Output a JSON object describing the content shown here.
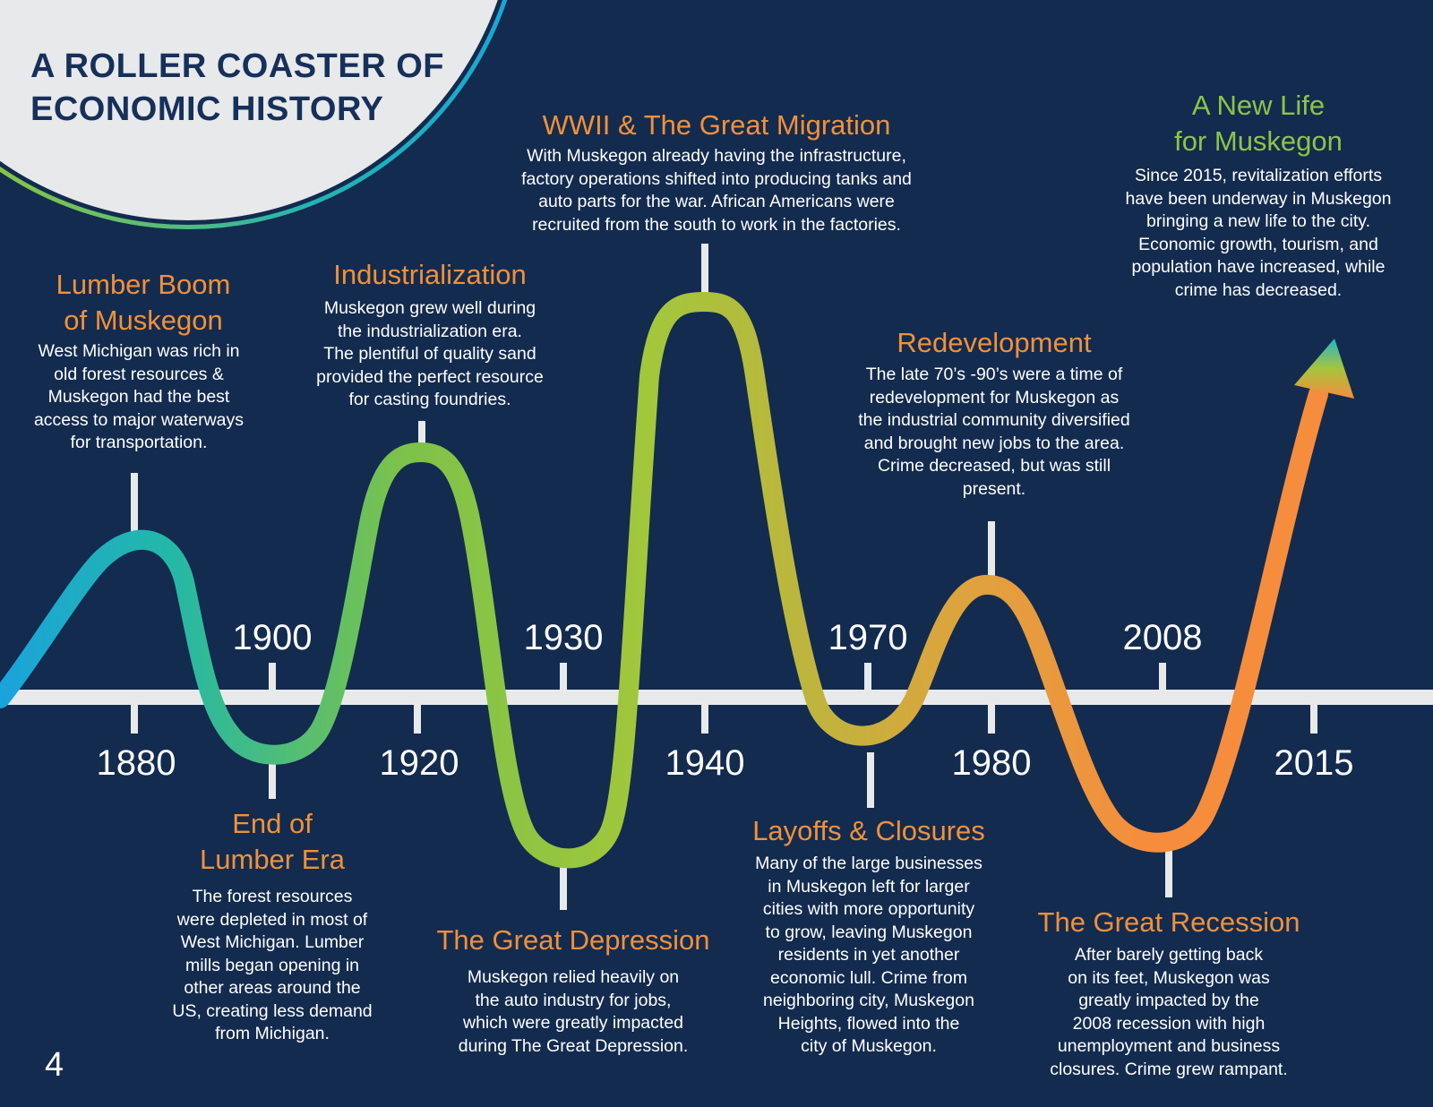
{
  "title": [
    "A ROLLER COASTER OF",
    "ECONOMIC HISTORY"
  ],
  "page_number": "4",
  "years_above": [
    "1900",
    "1930",
    "1970",
    "2008"
  ],
  "years_below": [
    "1880",
    "1920",
    "1940",
    "1980",
    "2015"
  ],
  "events": {
    "lumber_boom": {
      "heading": [
        "Lumber Boom",
        "of Muskegon"
      ],
      "body": [
        "West Michigan was rich in",
        "old forest resources &",
        "Muskegon had the best",
        "access to major waterways",
        "for transportation."
      ]
    },
    "end_lumber": {
      "heading": [
        "End of",
        "Lumber Era"
      ],
      "body": [
        "The forest resources",
        "were depleted in most of",
        "West Michigan. Lumber",
        "mills began opening in",
        "other areas around the",
        "US, creating less demand",
        "from Michigan."
      ]
    },
    "industrialization": {
      "heading": [
        "Industrialization"
      ],
      "body": [
        "Muskegon grew well during",
        "the industrialization era.",
        "The plentiful of quality sand",
        "provided the perfect resource",
        "for casting foundries."
      ]
    },
    "depression": {
      "heading": [
        "The Great Depression"
      ],
      "body": [
        "Muskegon relied heavily on",
        "the auto industry for jobs,",
        "which were greatly impacted",
        "during The Great Depression."
      ]
    },
    "wwii": {
      "heading": [
        "WWII & The Great Migration"
      ],
      "body": [
        "With Muskegon already having the infrastructure,",
        "factory operations shifted into producing tanks and",
        "auto parts for the war. African Americans were",
        "recruited from the south to work in the factories."
      ]
    },
    "layoffs": {
      "heading": [
        "Layoffs & Closures"
      ],
      "body": [
        "Many of the large businesses",
        "in Muskegon left for larger",
        "cities with more opportunity",
        "to grow, leaving Muskegon",
        "residents in yet another",
        "economic lull. Crime from",
        "neighboring city, Muskegon",
        "Heights, flowed into the",
        "city of Muskegon."
      ]
    },
    "redevelopment": {
      "heading": [
        "Redevelopment"
      ],
      "body": [
        "The late 70’s -90’s were a time of",
        "redevelopment for Muskegon as",
        "the industrial community diversified",
        "and brought new jobs to the area.",
        "Crime decreased, but was still",
        "present."
      ]
    },
    "recession": {
      "heading": [
        "The Great Recession"
      ],
      "body": [
        "After barely getting back",
        "on its feet, Muskegon was",
        "greatly impacted by the",
        "2008 recession with high",
        "unemployment and business",
        "closures. Crime grew rampant."
      ]
    },
    "new_life": {
      "heading": [
        "A New Life",
        "for Muskegon"
      ],
      "body": [
        "Since 2015, revitalization efforts",
        "have been underway in Muskegon",
        "bringing a new life to the city.",
        "Economic growth, tourism, and",
        "population have increased, while",
        "crime has decreased."
      ]
    }
  },
  "colors": {
    "background": "#132b4f",
    "title_circle": "#e8e9eb",
    "title_text": "#16305a",
    "heading": "#f0913a",
    "heading_highlight": "#8cc449",
    "gradient_start": "#1aa3dc",
    "gradient_mid": "#8cc63f",
    "gradient_end": "#f58d3d",
    "timeline": "#e8e9eb"
  }
}
